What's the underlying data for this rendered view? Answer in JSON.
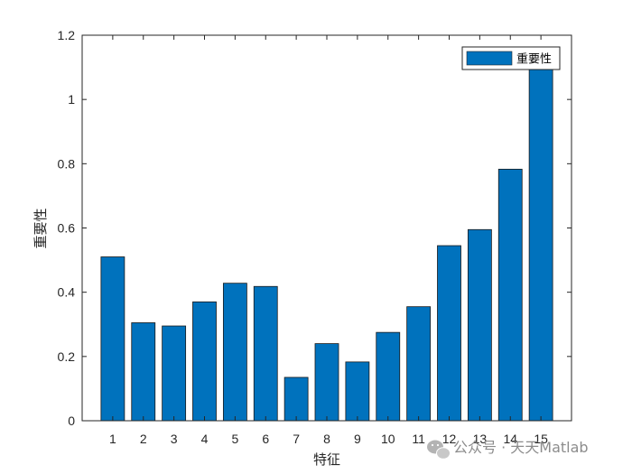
{
  "chart_data": {
    "type": "bar",
    "categories": [
      "1",
      "2",
      "3",
      "4",
      "5",
      "6",
      "7",
      "8",
      "9",
      "10",
      "11",
      "12",
      "13",
      "14",
      "15"
    ],
    "series": [
      {
        "name": "重要性",
        "values": [
          0.51,
          0.305,
          0.295,
          0.37,
          0.428,
          0.418,
          0.135,
          0.24,
          0.183,
          0.275,
          0.355,
          0.545,
          0.595,
          0.783,
          1.12
        ]
      }
    ],
    "xlabel": "特征",
    "ylabel": "重要性",
    "ylim": [
      0,
      1.2
    ],
    "yticks": [
      0,
      0.2,
      0.4,
      0.6,
      0.8,
      1,
      1.2
    ],
    "ytick_labels": [
      "0",
      "0.2",
      "0.4",
      "0.6",
      "0.8",
      "1",
      "1.2"
    ],
    "grid": false,
    "legend_position": "top-right",
    "bar_color": "#0072BD"
  },
  "watermark": {
    "text": "公众号 · 天天Matlab",
    "icon": "wechat-icon"
  }
}
